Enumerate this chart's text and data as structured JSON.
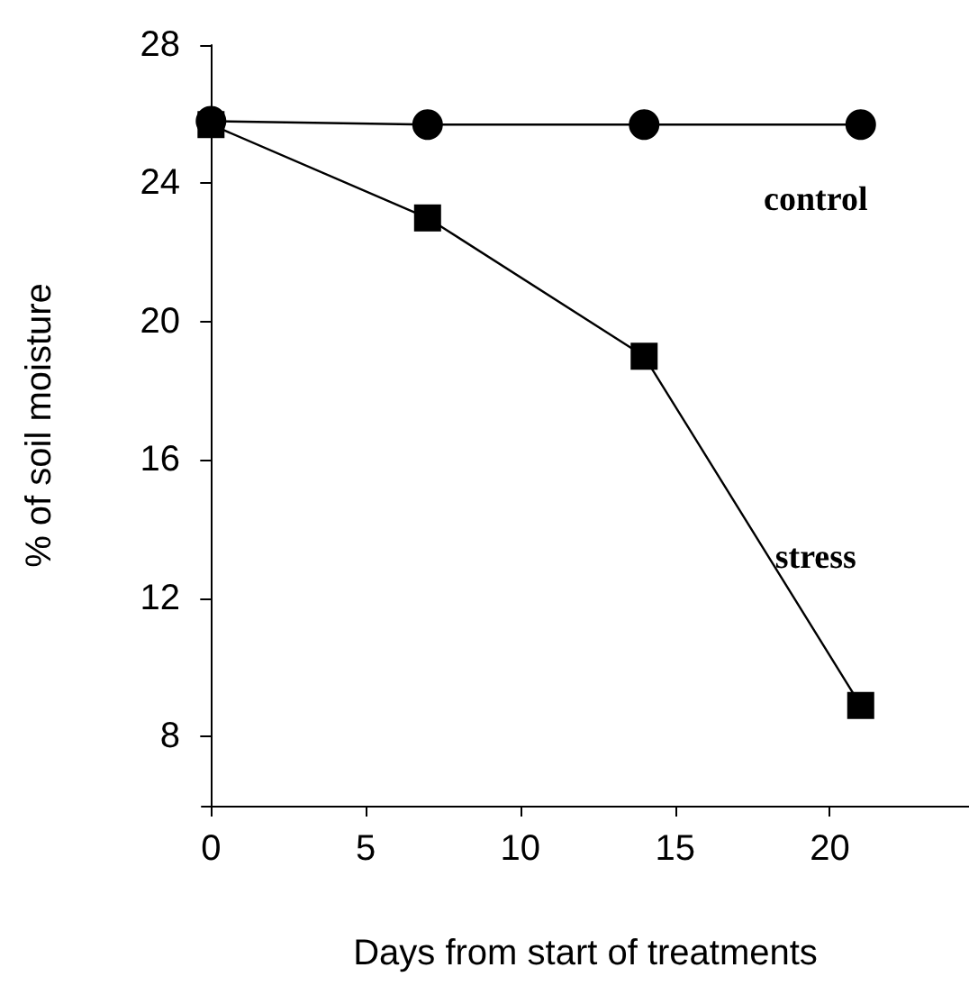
{
  "chart_data": {
    "type": "line",
    "xlabel": "Days from start of treatments",
    "ylabel": "% of soil moisture",
    "x": [
      0,
      7,
      14,
      21
    ],
    "series": [
      {
        "name": "control",
        "color": "#000000",
        "marker": "circle",
        "values": [
          25.8,
          25.7,
          25.7,
          25.7
        ]
      },
      {
        "name": "stress",
        "color": "#000000",
        "marker": "square",
        "values": [
          25.7,
          23.0,
          19.0,
          8.9
        ]
      }
    ],
    "xlim": [
      -0.3,
      24.5
    ],
    "xticks": [
      0,
      5,
      10,
      15,
      20
    ],
    "ylim": [
      6,
      28
    ],
    "yticks": [
      8,
      12,
      16,
      20,
      24,
      28
    ],
    "grid": false,
    "legend": false,
    "line_style": "solid"
  }
}
